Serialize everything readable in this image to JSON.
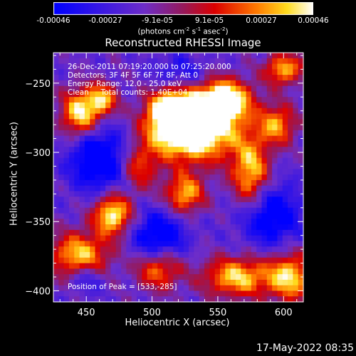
{
  "colorbar": {
    "tick_labels": [
      "-0.00046",
      "-0.00027",
      "-9.1e-05",
      "9.1e-05",
      "0.00027",
      "0.00046"
    ],
    "unit_text": "(photons cm",
    "unit_parts": [
      "(photons cm",
      "-2",
      " s",
      "-1",
      " asec",
      "-2",
      ")"
    ]
  },
  "chart_data": {
    "type": "heatmap",
    "title": "Reconstructed RHESSI Image",
    "xlabel": "Heliocentric X (arcsec)",
    "ylabel": "Heliocentric Y (arcsec)",
    "xlim": [
      425,
      615
    ],
    "ylim": [
      -408,
      -228
    ],
    "x_ticks": [
      450,
      500,
      550,
      600
    ],
    "y_ticks": [
      -250,
      -300,
      -350,
      -400
    ],
    "colorbar_range": [
      -0.00046,
      0.00046
    ],
    "peak": [
      533,
      -285
    ],
    "hotspots": [
      {
        "x": 533,
        "y": -282,
        "amp": 1.0,
        "sx": 22,
        "sy": 16
      },
      {
        "x": 555,
        "y": -262,
        "amp": 0.75,
        "sx": 14,
        "sy": 10
      },
      {
        "x": 515,
        "y": -272,
        "amp": 0.7,
        "sx": 12,
        "sy": 14
      },
      {
        "x": 445,
        "y": -272,
        "amp": 0.65,
        "sx": 10,
        "sy": 12
      },
      {
        "x": 462,
        "y": -262,
        "amp": 0.55,
        "sx": 8,
        "sy": 8
      },
      {
        "x": 470,
        "y": -345,
        "amp": 0.7,
        "sx": 10,
        "sy": 10
      },
      {
        "x": 445,
        "y": -375,
        "amp": 0.6,
        "sx": 16,
        "sy": 12
      },
      {
        "x": 575,
        "y": -315,
        "amp": 0.6,
        "sx": 10,
        "sy": 18
      },
      {
        "x": 525,
        "y": -330,
        "amp": 0.55,
        "sx": 10,
        "sy": 10
      },
      {
        "x": 565,
        "y": -390,
        "amp": 0.6,
        "sx": 18,
        "sy": 10
      },
      {
        "x": 605,
        "y": -390,
        "amp": 0.6,
        "sx": 12,
        "sy": 12
      },
      {
        "x": 600,
        "y": -240,
        "amp": 0.55,
        "sx": 10,
        "sy": 8
      },
      {
        "x": 595,
        "y": -280,
        "amp": 0.5,
        "sx": 10,
        "sy": 10
      },
      {
        "x": 505,
        "y": -385,
        "amp": 0.45,
        "sx": 12,
        "sy": 10
      },
      {
        "x": 490,
        "y": -310,
        "amp": 0.4,
        "sx": 10,
        "sy": 12
      }
    ],
    "coldspots": [
      {
        "x": 460,
        "y": -305,
        "amp": 0.5,
        "sx": 16,
        "sy": 16
      },
      {
        "x": 505,
        "y": -360,
        "amp": 0.45,
        "sx": 14,
        "sy": 12
      },
      {
        "x": 590,
        "y": -345,
        "amp": 0.45,
        "sx": 16,
        "sy": 16
      },
      {
        "x": 450,
        "y": -390,
        "amp": 0.3,
        "sx": 10,
        "sy": 8
      },
      {
        "x": 520,
        "y": -245,
        "amp": 0.3,
        "sx": 14,
        "sy": 10
      }
    ]
  },
  "annotations": {
    "line1": "26-Dec-2011 07:19:20.000 to 07:25:20.000",
    "line2": "Detectors: 3F 4F 5F 6F 7F 8F, Att 0",
    "line3": "Energy Range: 12.0 - 25.0 keV",
    "line4": "Clean     Total counts: 1.40E+04",
    "peak_label": "Position of Peak = [533,-285]"
  },
  "timestamp": "17-May-2022 08:35",
  "colors": {
    "background": "#000000",
    "text": "#ffffff"
  }
}
